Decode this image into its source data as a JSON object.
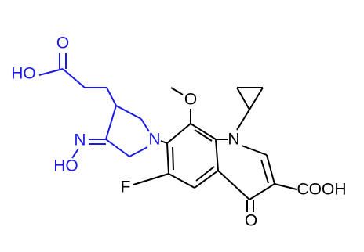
{
  "atoms": [
    "O",
    "HO",
    "N",
    "HO",
    "N",
    "O",
    "N",
    "F",
    "O",
    "COOH"
  ]
}
